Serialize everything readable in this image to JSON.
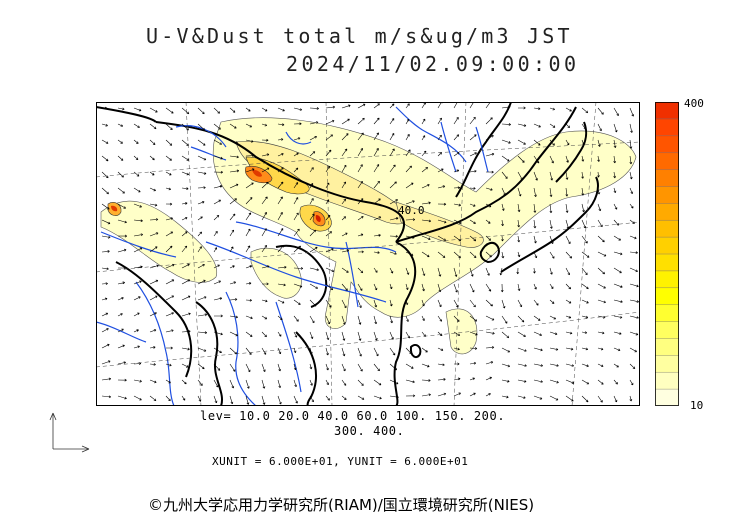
{
  "header": {
    "title": "U-V&Dust total m/s&ug/m3 JST",
    "datetime": "2024/11/02.09:00:00"
  },
  "map": {
    "contour_label": "40.0",
    "region": "East Asia",
    "colors": {
      "coast_thick": "#000000",
      "rivers": "#1f4fe0",
      "contour": "#333333"
    }
  },
  "colorbar": {
    "max_label": "400",
    "min_label": "10",
    "colors": [
      "#ffffe0",
      "#ffffc0",
      "#ffffa0",
      "#ffff80",
      "#ffff60",
      "#ffff30",
      "#ffff00",
      "#fff200",
      "#ffe000",
      "#ffd000",
      "#ffbf00",
      "#ffaa00",
      "#ff9500",
      "#ff8000",
      "#ff6a00",
      "#ff5500",
      "#ff4500",
      "#f03000"
    ]
  },
  "levels": {
    "line1": "lev= 10.0 20.0 40.0 60.0 100. 150. 200.",
    "line2": "300. 400."
  },
  "units": {
    "text": "XUNIT = 6.000E+01, YUNIT = 6.000E+01"
  },
  "footer": {
    "credit": "©九州大学応用力学研究所(RIAM)/国立環境研究所(NIES)"
  }
}
